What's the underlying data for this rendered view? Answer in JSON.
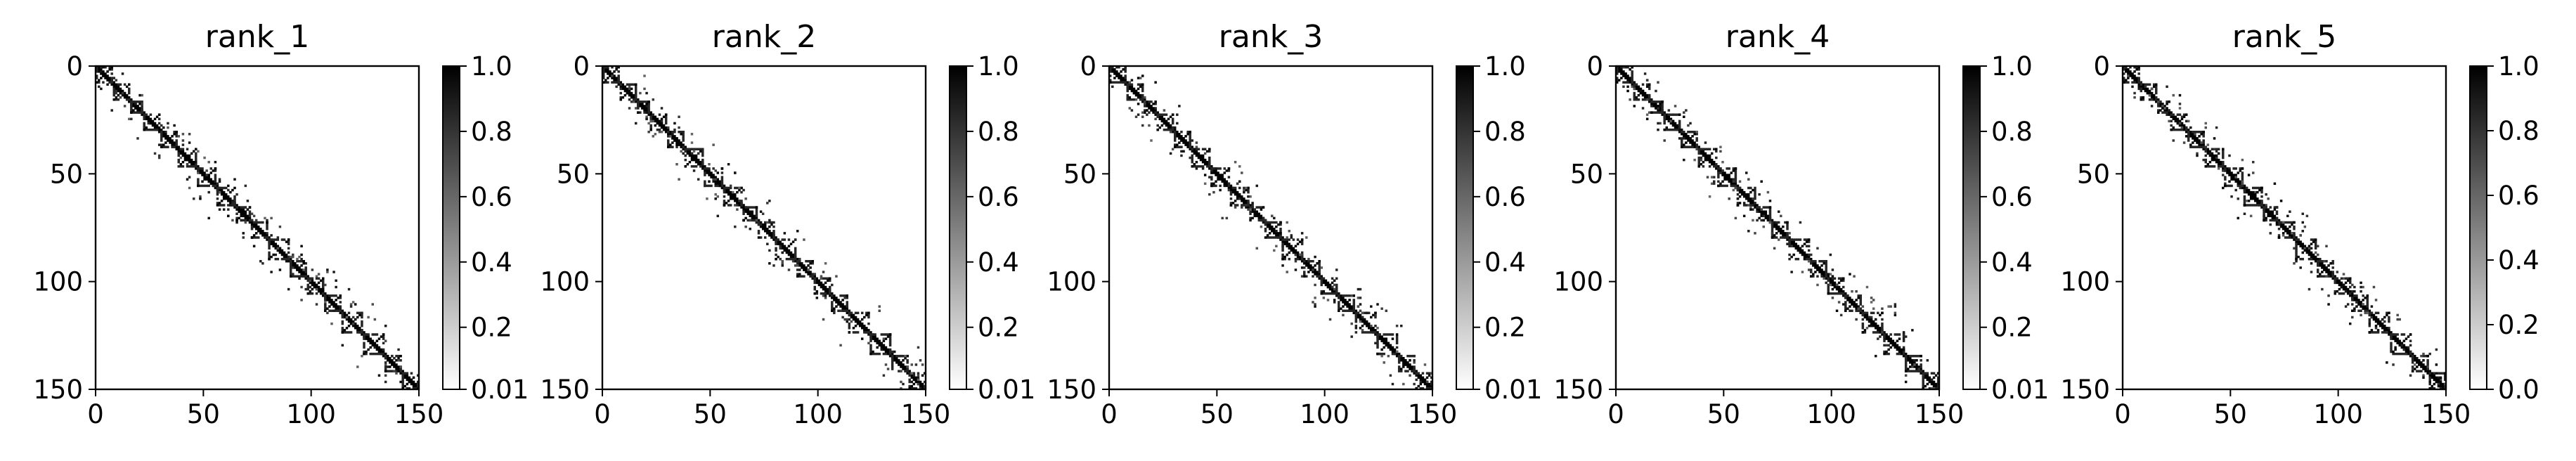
{
  "chart_data": [
    {
      "type": "heatmap",
      "title": "rank_1",
      "xlim": [
        0,
        150
      ],
      "ylim": [
        150,
        0
      ],
      "xticks": [
        "0",
        "50",
        "100",
        "150"
      ],
      "yticks": [
        "0",
        "50",
        "100",
        "150"
      ],
      "colormap": "binary",
      "colorbar": {
        "ticks": [
          "0.01",
          "0.2",
          "0.4",
          "0.6",
          "0.8",
          "1.0"
        ],
        "min": 0.01,
        "max": 1.0
      },
      "matrix_size": 150,
      "diagonal_value": 1.0,
      "block_boundaries": [
        0,
        8,
        16,
        22,
        30,
        38,
        47,
        56,
        65,
        72,
        80,
        90,
        98,
        106,
        114,
        124,
        134,
        142,
        150
      ]
    },
    {
      "type": "heatmap",
      "title": "rank_2",
      "xlim": [
        0,
        150
      ],
      "ylim": [
        150,
        0
      ],
      "xticks": [
        "0",
        "50",
        "100",
        "150"
      ],
      "yticks": [
        "0",
        "50",
        "100",
        "150"
      ],
      "colormap": "binary",
      "colorbar": {
        "ticks": [
          "0.01",
          "0.2",
          "0.4",
          "0.6",
          "0.8",
          "1.0"
        ],
        "min": 0.01,
        "max": 1.0
      },
      "matrix_size": 150,
      "diagonal_value": 1.0,
      "block_boundaries": [
        0,
        8,
        16,
        22,
        30,
        38,
        47,
        56,
        65,
        72,
        80,
        90,
        98,
        106,
        114,
        124,
        134,
        142,
        150
      ]
    },
    {
      "type": "heatmap",
      "title": "rank_3",
      "xlim": [
        0,
        150
      ],
      "ylim": [
        150,
        0
      ],
      "xticks": [
        "0",
        "50",
        "100",
        "150"
      ],
      "yticks": [
        "0",
        "50",
        "100",
        "150"
      ],
      "colormap": "binary",
      "colorbar": {
        "ticks": [
          "0.01",
          "0.2",
          "0.4",
          "0.6",
          "0.8",
          "1.0"
        ],
        "min": 0.01,
        "max": 1.0
      },
      "matrix_size": 150,
      "diagonal_value": 1.0,
      "block_boundaries": [
        0,
        8,
        16,
        22,
        30,
        38,
        47,
        56,
        65,
        72,
        80,
        90,
        98,
        106,
        114,
        124,
        134,
        142,
        150
      ]
    },
    {
      "type": "heatmap",
      "title": "rank_4",
      "xlim": [
        0,
        150
      ],
      "ylim": [
        150,
        0
      ],
      "xticks": [
        "0",
        "50",
        "100",
        "150"
      ],
      "yticks": [
        "0",
        "50",
        "100",
        "150"
      ],
      "colormap": "binary",
      "colorbar": {
        "ticks": [
          "0.01",
          "0.2",
          "0.4",
          "0.6",
          "0.8",
          "1.0"
        ],
        "min": 0.01,
        "max": 1.0
      },
      "matrix_size": 150,
      "diagonal_value": 1.0,
      "block_boundaries": [
        0,
        8,
        16,
        22,
        30,
        38,
        47,
        56,
        65,
        72,
        80,
        90,
        98,
        106,
        114,
        124,
        134,
        142,
        150
      ]
    },
    {
      "type": "heatmap",
      "title": "rank_5",
      "xlim": [
        0,
        150
      ],
      "ylim": [
        150,
        0
      ],
      "xticks": [
        "0",
        "50",
        "100",
        "150"
      ],
      "yticks": [
        "0",
        "50",
        "100",
        "150"
      ],
      "colormap": "binary",
      "colorbar": {
        "ticks": [
          "0.0",
          "0.2",
          "0.4",
          "0.6",
          "0.8",
          "1.0"
        ],
        "min": 0.0,
        "max": 1.0
      },
      "matrix_size": 150,
      "diagonal_value": 1.0,
      "block_boundaries": [
        0,
        8,
        16,
        22,
        30,
        38,
        47,
        56,
        65,
        72,
        80,
        90,
        98,
        106,
        114,
        124,
        134,
        142,
        150
      ]
    }
  ]
}
